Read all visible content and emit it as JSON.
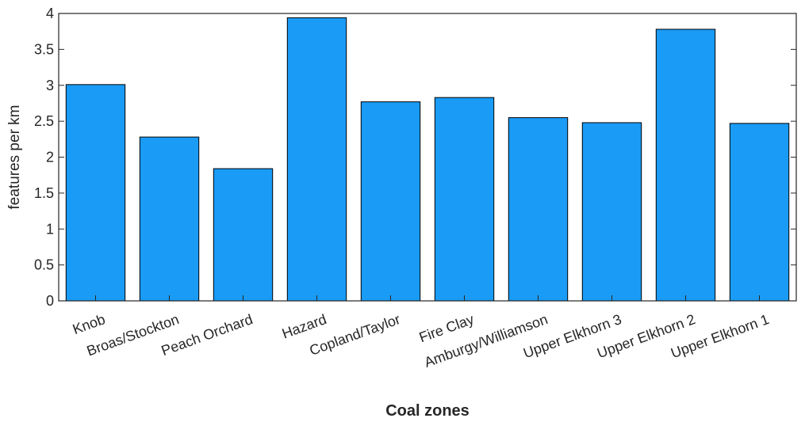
{
  "chart_data": {
    "type": "bar",
    "title": "",
    "xlabel": "Coal zones",
    "ylabel": "features per km",
    "ylim": [
      0,
      4
    ],
    "yticks": [
      0,
      0.5,
      1,
      1.5,
      2,
      2.5,
      3,
      3.5,
      4
    ],
    "ytick_labels": [
      "0",
      "0.5",
      "1",
      "1.5",
      "2",
      "2.5",
      "3",
      "3.5",
      "4"
    ],
    "grid": false,
    "bar_color": "#1a9bf5",
    "categories": [
      "Knob",
      "Broas/Stockton",
      "Peach Orchard",
      "Hazard",
      "Copland/Taylor",
      "Fire Clay",
      "Amburgy/Williamson",
      "Upper Elkhorn 3",
      "Upper Elkhorn 2",
      "Upper Elkhorn 1"
    ],
    "values": [
      3.01,
      2.28,
      1.84,
      3.94,
      2.77,
      2.83,
      2.55,
      2.48,
      3.78,
      2.47
    ]
  }
}
